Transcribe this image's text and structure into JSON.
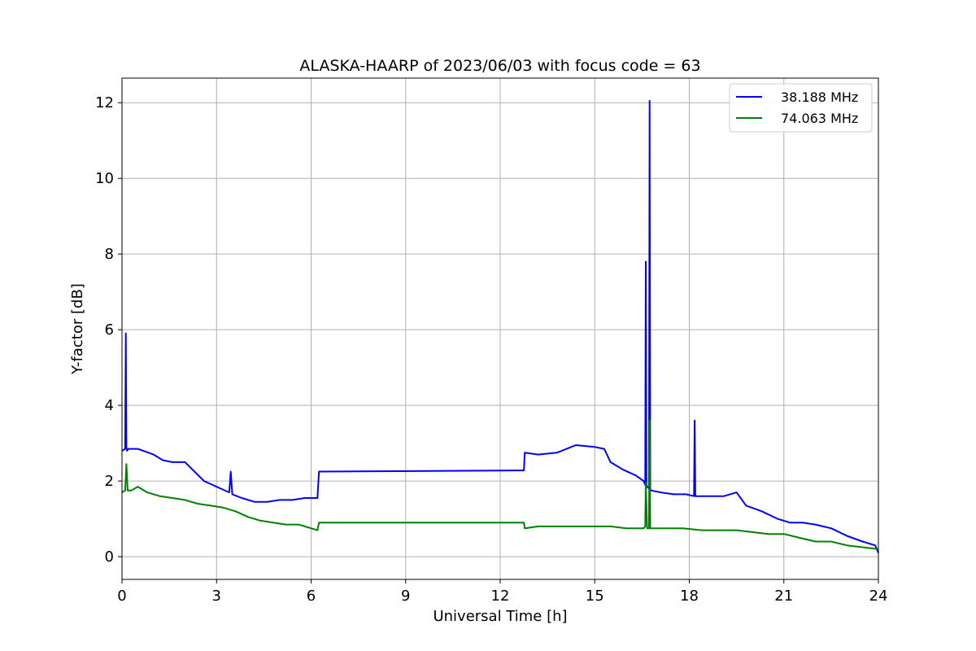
{
  "chart_data": {
    "type": "line",
    "title": "ALASKA-HAARP of 2023/06/03 with focus code = 63",
    "xlabel": "Universal Time [h]",
    "ylabel": "Y-factor [dB]",
    "xlim": [
      0,
      24
    ],
    "ylim": [
      -0.6,
      12.65
    ],
    "xticks": [
      0,
      3,
      6,
      9,
      12,
      15,
      18,
      21,
      24
    ],
    "xtick_labels": [
      "0",
      "3",
      "6",
      "9",
      "12",
      "15",
      "18",
      "21",
      "24"
    ],
    "yticks": [
      0,
      2,
      4,
      6,
      8,
      10,
      12
    ],
    "ytick_labels": [
      "0",
      "2",
      "4",
      "6",
      "8",
      "10",
      "12"
    ],
    "grid": true,
    "legend_position": "top-right",
    "series": [
      {
        "name": "38.188 MHz",
        "color": "#0000ff",
        "x": [
          0.0,
          0.1,
          0.12,
          0.14,
          0.16,
          0.2,
          0.5,
          1.0,
          1.3,
          1.6,
          2.0,
          2.3,
          2.6,
          3.0,
          3.4,
          3.45,
          3.5,
          3.8,
          4.2,
          4.6,
          5.0,
          5.4,
          5.8,
          6.2,
          6.25,
          6.3,
          12.75,
          12.78,
          13.2,
          13.8,
          14.4,
          15.0,
          15.3,
          15.5,
          15.9,
          16.3,
          16.55,
          16.6,
          16.62,
          16.64,
          16.66,
          16.72,
          16.74,
          16.76,
          16.78,
          17.1,
          17.5,
          17.9,
          18.15,
          18.17,
          18.19,
          18.6,
          19.1,
          19.5,
          19.8,
          20.3,
          20.8,
          21.2,
          21.6,
          22.0,
          22.5,
          23.0,
          23.5,
          23.9,
          24.0
        ],
        "y": [
          2.8,
          2.85,
          5.9,
          2.9,
          2.8,
          2.85,
          2.85,
          2.7,
          2.55,
          2.5,
          2.5,
          2.25,
          2.0,
          1.85,
          1.7,
          2.25,
          1.65,
          1.55,
          1.45,
          1.45,
          1.5,
          1.5,
          1.55,
          1.55,
          2.25,
          2.25,
          2.28,
          2.75,
          2.7,
          2.75,
          2.95,
          2.9,
          2.85,
          2.5,
          2.3,
          2.15,
          2.0,
          1.9,
          7.8,
          1.9,
          1.85,
          1.8,
          12.05,
          1.8,
          1.75,
          1.7,
          1.65,
          1.65,
          1.6,
          3.6,
          1.6,
          1.6,
          1.6,
          1.7,
          1.35,
          1.2,
          1.0,
          0.9,
          0.9,
          0.85,
          0.75,
          0.55,
          0.4,
          0.3,
          0.1
        ]
      },
      {
        "name": "74.063 MHz",
        "color": "#008000",
        "x": [
          0.0,
          0.1,
          0.14,
          0.18,
          0.3,
          0.5,
          0.8,
          1.2,
          1.6,
          2.0,
          2.4,
          2.8,
          3.2,
          3.6,
          4.0,
          4.4,
          4.8,
          5.2,
          5.6,
          6.0,
          6.2,
          6.25,
          6.3,
          12.75,
          12.78,
          13.2,
          13.8,
          14.4,
          15.0,
          15.5,
          16.0,
          16.4,
          16.55,
          16.6,
          16.62,
          16.66,
          16.72,
          16.74,
          16.76,
          16.78,
          17.2,
          17.8,
          18.4,
          19.0,
          19.5,
          20.0,
          20.5,
          21.0,
          21.5,
          22.0,
          22.5,
          23.0,
          23.5,
          24.0
        ],
        "y": [
          1.7,
          1.75,
          2.45,
          1.75,
          1.75,
          1.85,
          1.7,
          1.6,
          1.55,
          1.5,
          1.4,
          1.35,
          1.3,
          1.2,
          1.05,
          0.95,
          0.9,
          0.85,
          0.85,
          0.75,
          0.7,
          0.9,
          0.9,
          0.9,
          0.75,
          0.8,
          0.8,
          0.8,
          0.8,
          0.8,
          0.75,
          0.75,
          0.75,
          0.8,
          1.95,
          0.75,
          0.75,
          3.6,
          0.75,
          0.75,
          0.75,
          0.75,
          0.7,
          0.7,
          0.7,
          0.65,
          0.6,
          0.6,
          0.5,
          0.4,
          0.4,
          0.3,
          0.25,
          0.2
        ]
      }
    ]
  }
}
